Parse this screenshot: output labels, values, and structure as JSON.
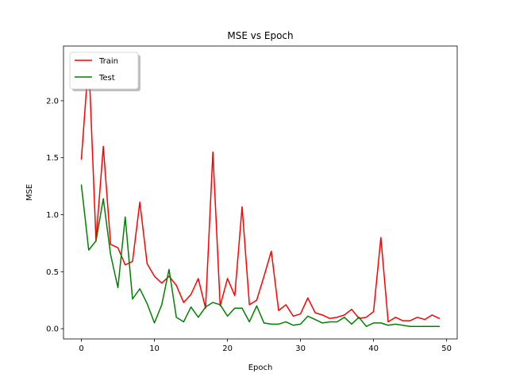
{
  "chart_data": {
    "type": "line",
    "title": "MSE vs Epoch",
    "xlabel": "Epoch",
    "ylabel": "MSE",
    "xlim": [
      -2.45,
      51.45
    ],
    "ylim": [
      -0.09,
      2.48
    ],
    "xticks": [
      0,
      10,
      20,
      30,
      40,
      50
    ],
    "yticks": [
      0.0,
      0.5,
      1.0,
      1.5,
      2.0
    ],
    "xtick_labels": [
      "0",
      "10",
      "20",
      "30",
      "40",
      "50"
    ],
    "ytick_labels": [
      "0.0",
      "0.5",
      "1.0",
      "1.5",
      "2.0"
    ],
    "grid": false,
    "legend_position": "top-left",
    "series": [
      {
        "name": "Train",
        "color": "#ff0000",
        "x": [
          0,
          1,
          2,
          3,
          4,
          5,
          6,
          7,
          8,
          9,
          10,
          11,
          12,
          13,
          14,
          15,
          16,
          17,
          18,
          19,
          20,
          21,
          22,
          23,
          24,
          25,
          26,
          27,
          28,
          29,
          30,
          31,
          32,
          33,
          34,
          35,
          36,
          37,
          38,
          39,
          40,
          41,
          42,
          43,
          44,
          45,
          46,
          47,
          48,
          49
        ],
        "values": [
          1.49,
          2.37,
          0.77,
          1.6,
          0.74,
          0.71,
          0.56,
          0.59,
          1.11,
          0.57,
          0.46,
          0.4,
          0.46,
          0.38,
          0.23,
          0.3,
          0.44,
          0.18,
          1.55,
          0.2,
          0.44,
          0.29,
          1.07,
          0.21,
          0.25,
          0.46,
          0.68,
          0.16,
          0.21,
          0.11,
          0.13,
          0.27,
          0.14,
          0.12,
          0.09,
          0.1,
          0.12,
          0.17,
          0.09,
          0.1,
          0.15,
          0.8,
          0.06,
          0.1,
          0.07,
          0.07,
          0.1,
          0.08,
          0.12,
          0.09
        ]
      },
      {
        "name": "Test",
        "color": "#008000",
        "x": [
          0,
          1,
          2,
          3,
          4,
          5,
          6,
          7,
          8,
          9,
          10,
          11,
          12,
          13,
          14,
          15,
          16,
          17,
          18,
          19,
          20,
          21,
          22,
          23,
          24,
          25,
          26,
          27,
          28,
          29,
          30,
          31,
          32,
          33,
          34,
          35,
          36,
          37,
          38,
          39,
          40,
          41,
          42,
          43,
          44,
          45,
          46,
          47,
          48,
          49
        ],
        "values": [
          1.26,
          0.69,
          0.77,
          1.14,
          0.65,
          0.36,
          0.98,
          0.26,
          0.35,
          0.22,
          0.05,
          0.21,
          0.52,
          0.1,
          0.06,
          0.19,
          0.1,
          0.19,
          0.23,
          0.21,
          0.11,
          0.18,
          0.18,
          0.06,
          0.2,
          0.05,
          0.04,
          0.04,
          0.06,
          0.03,
          0.04,
          0.11,
          0.08,
          0.05,
          0.06,
          0.06,
          0.1,
          0.04,
          0.1,
          0.02,
          0.05,
          0.05,
          0.03,
          0.04,
          0.03,
          0.02,
          0.02,
          0.02,
          0.02,
          0.02
        ]
      }
    ]
  }
}
